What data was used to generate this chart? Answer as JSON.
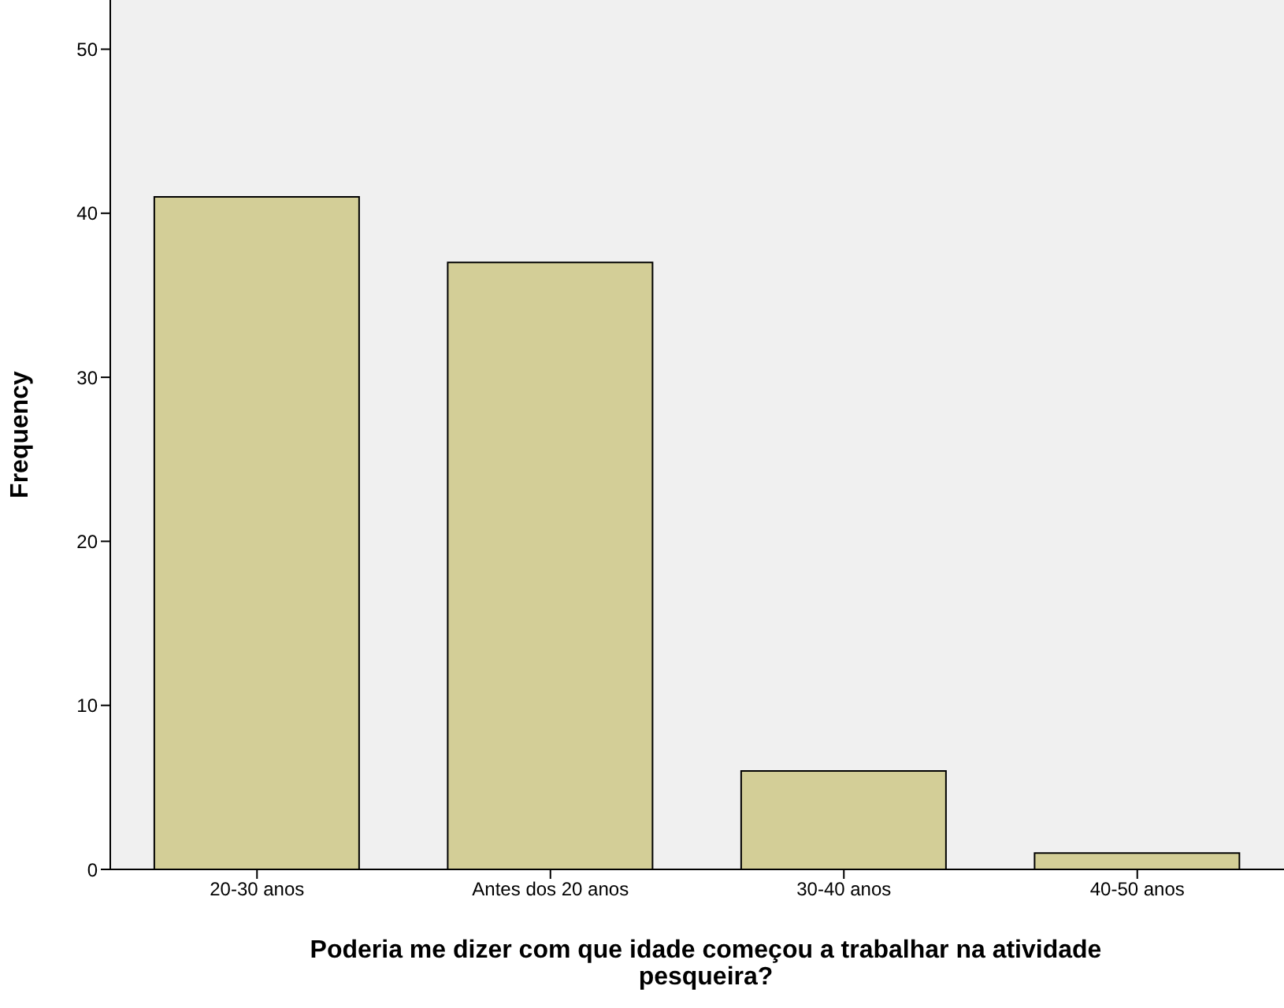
{
  "chart_data": {
    "type": "bar",
    "xlabel": "Poderia me dizer com que idade começou a trabalhar na atividade pesqueira?",
    "ylabel": "Frequency",
    "categories": [
      "20-30 anos",
      "Antes dos 20 anos",
      "30-40 anos",
      "40-50 anos"
    ],
    "values": [
      41,
      37,
      6,
      1
    ],
    "color": "#d3ce97",
    "ylim": [
      0,
      53
    ],
    "yticks": [
      0,
      10,
      20,
      30,
      40,
      50
    ]
  }
}
